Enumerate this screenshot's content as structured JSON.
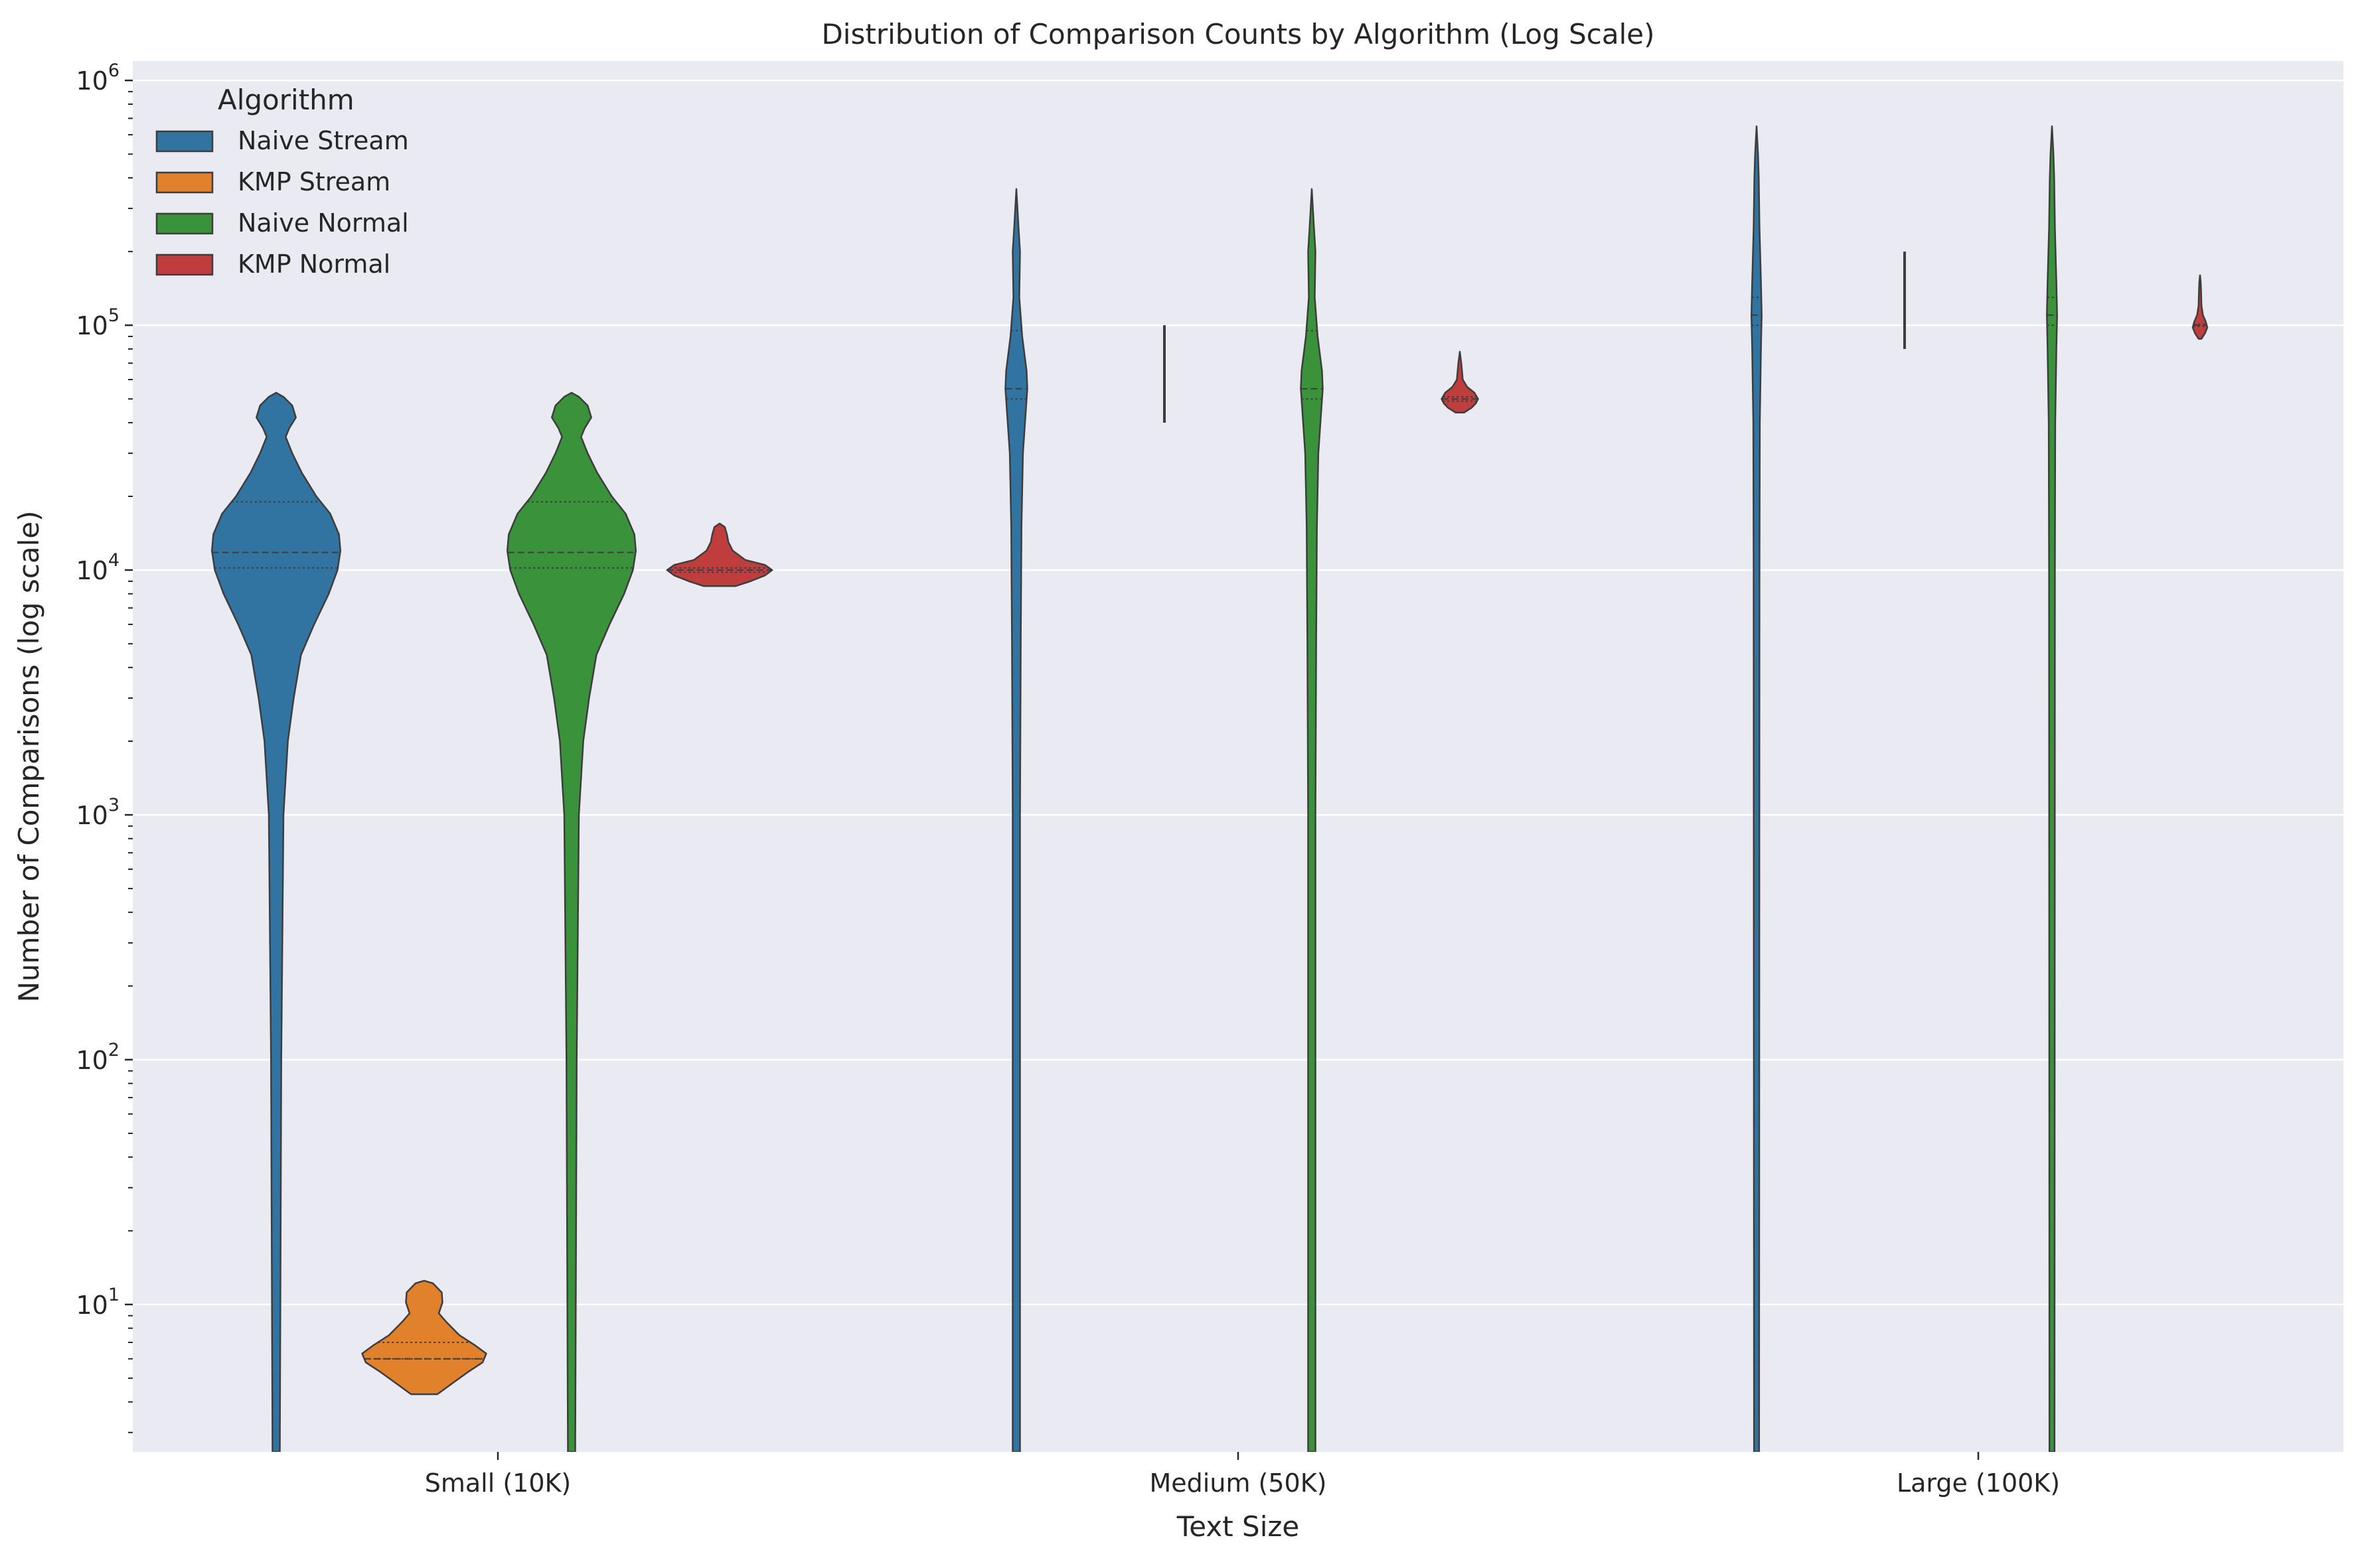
{
  "chart_data": {
    "type": "violin",
    "title": "Distribution of Comparison Counts by Algorithm (Log Scale)",
    "xlabel": "Text Size",
    "ylabel": "Number of Comparisons (log scale)",
    "y_scale": "log",
    "ylim": [
      2.5,
      1200000
    ],
    "grid": true,
    "categories": [
      "Small (10K)",
      "Medium (50K)",
      "Large (100K)"
    ],
    "y_ticks": [
      {
        "base": "10",
        "exp": "1",
        "value": 10
      },
      {
        "base": "10",
        "exp": "2",
        "value": 100
      },
      {
        "base": "10",
        "exp": "3",
        "value": 1000
      },
      {
        "base": "10",
        "exp": "4",
        "value": 10000
      },
      {
        "base": "10",
        "exp": "5",
        "value": 100000
      },
      {
        "base": "10",
        "exp": "6",
        "value": 1000000
      }
    ],
    "legend": {
      "title": "Algorithm",
      "position": "upper-left"
    },
    "series": [
      {
        "name": "Naive Stream",
        "color": "#3274a1",
        "violins": [
          {
            "category": "Small (10K)",
            "profile": [
              [
                2.5,
                0.05
              ],
              [
                100,
                0.07
              ],
              [
                1000,
                0.1
              ],
              [
                2000,
                0.16
              ],
              [
                3000,
                0.24
              ],
              [
                4500,
                0.34
              ],
              [
                6000,
                0.52
              ],
              [
                8000,
                0.72
              ],
              [
                10000,
                0.84
              ],
              [
                12000,
                0.88
              ],
              [
                14000,
                0.86
              ],
              [
                17000,
                0.74
              ],
              [
                20000,
                0.55
              ],
              [
                25000,
                0.35
              ],
              [
                30000,
                0.22
              ],
              [
                35000,
                0.13
              ],
              [
                38000,
                0.18
              ],
              [
                42000,
                0.27
              ],
              [
                47000,
                0.22
              ],
              [
                51000,
                0.1
              ],
              [
                53000,
                0.0
              ]
            ],
            "quartiles": [
              10200,
              11800,
              19000
            ]
          },
          {
            "category": "Medium (50K)",
            "profile": [
              [
                2.5,
                0.05
              ],
              [
                1000,
                0.05
              ],
              [
                5000,
                0.06
              ],
              [
                15000,
                0.07
              ],
              [
                30000,
                0.09
              ],
              [
                45000,
                0.13
              ],
              [
                55000,
                0.15
              ],
              [
                65000,
                0.14
              ],
              [
                90000,
                0.08
              ],
              [
                130000,
                0.04
              ],
              [
                200000,
                0.05
              ],
              [
                250000,
                0.03
              ],
              [
                360000,
                0.0
              ]
            ],
            "quartiles": [
              50000,
              55000,
              95000
            ]
          },
          {
            "category": "Large (100K)",
            "profile": [
              [
                2.5,
                0.035
              ],
              [
                10000,
                0.04
              ],
              [
                40000,
                0.045
              ],
              [
                80000,
                0.06
              ],
              [
                110000,
                0.07
              ],
              [
                150000,
                0.06
              ],
              [
                250000,
                0.04
              ],
              [
                400000,
                0.03
              ],
              [
                500000,
                0.02
              ],
              [
                650000,
                0.0
              ]
            ],
            "quartiles": [
              100000,
              110000,
              130000
            ]
          }
        ]
      },
      {
        "name": "KMP Stream",
        "color": "#e1812c",
        "violins": [
          {
            "category": "Small (10K)",
            "profile": [
              [
                4.3,
                0.18
              ],
              [
                4.8,
                0.4
              ],
              [
                5.3,
                0.6
              ],
              [
                5.8,
                0.8
              ],
              [
                6.3,
                0.85
              ],
              [
                6.8,
                0.7
              ],
              [
                7.5,
                0.48
              ],
              [
                8.5,
                0.3
              ],
              [
                9.2,
                0.2
              ],
              [
                10.2,
                0.25
              ],
              [
                11.2,
                0.24
              ],
              [
                12.2,
                0.12
              ],
              [
                12.5,
                0.0
              ]
            ],
            "quartiles": [
              6,
              6,
              7
            ]
          },
          {
            "category": "Medium (50K)",
            "line": [
              40000,
              100000
            ]
          },
          {
            "category": "Large (100K)",
            "line": [
              80000,
              200000
            ]
          }
        ]
      },
      {
        "name": "Naive Normal",
        "color": "#3a923a",
        "violins": [
          {
            "category": "Small (10K)",
            "profile": [
              [
                2.5,
                0.05
              ],
              [
                100,
                0.07
              ],
              [
                1000,
                0.1
              ],
              [
                2000,
                0.16
              ],
              [
                3000,
                0.24
              ],
              [
                4500,
                0.34
              ],
              [
                6000,
                0.52
              ],
              [
                8000,
                0.72
              ],
              [
                10000,
                0.84
              ],
              [
                12000,
                0.88
              ],
              [
                14000,
                0.86
              ],
              [
                17000,
                0.74
              ],
              [
                20000,
                0.55
              ],
              [
                25000,
                0.35
              ],
              [
                30000,
                0.22
              ],
              [
                35000,
                0.13
              ],
              [
                38000,
                0.18
              ],
              [
                42000,
                0.27
              ],
              [
                47000,
                0.22
              ],
              [
                51000,
                0.1
              ],
              [
                53000,
                0.0
              ]
            ],
            "quartiles": [
              10200,
              11800,
              19000
            ]
          },
          {
            "category": "Medium (50K)",
            "profile": [
              [
                2.5,
                0.05
              ],
              [
                1000,
                0.05
              ],
              [
                5000,
                0.06
              ],
              [
                15000,
                0.07
              ],
              [
                30000,
                0.09
              ],
              [
                45000,
                0.13
              ],
              [
                55000,
                0.15
              ],
              [
                65000,
                0.14
              ],
              [
                90000,
                0.08
              ],
              [
                130000,
                0.04
              ],
              [
                200000,
                0.05
              ],
              [
                250000,
                0.03
              ],
              [
                360000,
                0.0
              ]
            ],
            "quartiles": [
              50000,
              55000,
              95000
            ]
          },
          {
            "category": "Large (100K)",
            "profile": [
              [
                2.5,
                0.035
              ],
              [
                10000,
                0.04
              ],
              [
                40000,
                0.045
              ],
              [
                80000,
                0.06
              ],
              [
                110000,
                0.07
              ],
              [
                150000,
                0.06
              ],
              [
                250000,
                0.04
              ],
              [
                400000,
                0.03
              ],
              [
                500000,
                0.02
              ],
              [
                650000,
                0.0
              ]
            ],
            "quartiles": [
              100000,
              110000,
              130000
            ]
          }
        ]
      },
      {
        "name": "KMP Normal",
        "color": "#c03d3e",
        "violins": [
          {
            "category": "Small (10K)",
            "profile": [
              [
                8600,
                0.22
              ],
              [
                9000,
                0.42
              ],
              [
                9500,
                0.62
              ],
              [
                10000,
                0.72
              ],
              [
                10500,
                0.62
              ],
              [
                11000,
                0.35
              ],
              [
                12000,
                0.18
              ],
              [
                13000,
                0.12
              ],
              [
                14000,
                0.1
              ],
              [
                15000,
                0.07
              ],
              [
                15500,
                0.0
              ]
            ],
            "quartiles": [
              9800,
              10000,
              10200
            ]
          },
          {
            "category": "Medium (50K)",
            "profile": [
              [
                44000,
                0.06
              ],
              [
                46000,
                0.16
              ],
              [
                48000,
                0.22
              ],
              [
                50000,
                0.25
              ],
              [
                53000,
                0.2
              ],
              [
                56000,
                0.1
              ],
              [
                60000,
                0.04
              ],
              [
                65000,
                0.03
              ],
              [
                70000,
                0.02
              ],
              [
                78000,
                0.0
              ]
            ],
            "quartiles": [
              49000,
              50000,
              51000
            ]
          },
          {
            "category": "Large (100K)",
            "profile": [
              [
                88000,
                0.02
              ],
              [
                93000,
                0.07
              ],
              [
                98000,
                0.1
              ],
              [
                103000,
                0.08
              ],
              [
                110000,
                0.04
              ],
              [
                120000,
                0.02
              ],
              [
                135000,
                0.015
              ],
              [
                150000,
                0.01
              ],
              [
                160000,
                0.0
              ]
            ],
            "quartiles": [
              99000,
              100000,
              101000
            ]
          }
        ]
      }
    ]
  }
}
